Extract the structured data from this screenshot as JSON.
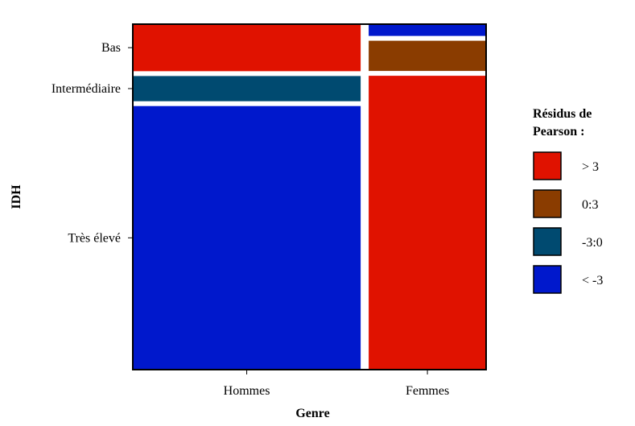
{
  "chart_data": {
    "type": "mosaic",
    "xlabel": "Genre",
    "ylabel": "IDH",
    "x_categories": [
      {
        "name": "Hommes",
        "share": 0.66
      },
      {
        "name": "Femmes",
        "share": 0.34
      }
    ],
    "y_categories": [
      "Bas",
      "Intermédiaire",
      "Très élevé"
    ],
    "cells": [
      {
        "x": "Hommes",
        "y": "Bas",
        "share": 0.14,
        "residual_class": "> 3"
      },
      {
        "x": "Hommes",
        "y": "Intermédiaire",
        "share": 0.075,
        "residual_class": "-3:0"
      },
      {
        "x": "Hommes",
        "y": "Très élevé",
        "share": 0.785,
        "residual_class": "< -3"
      },
      {
        "x": "Femmes",
        "y": "Bas",
        "share": 0.035,
        "residual_class": "< -3"
      },
      {
        "x": "Femmes",
        "y": "Intermédiaire",
        "share": 0.09,
        "residual_class": "0:3"
      },
      {
        "x": "Femmes",
        "y": "Très élevé",
        "share": 0.875,
        "residual_class": "> 3"
      }
    ],
    "legend": {
      "title": [
        "Résidus de",
        "Pearson :"
      ],
      "items": [
        {
          "label": "> 3",
          "color": "#e01200"
        },
        {
          "label": "0:3",
          "color": "#8a3c00"
        },
        {
          "label": "-3:0",
          "color": "#004a70"
        },
        {
          "label": "< -3",
          "color": "#0018cc"
        }
      ]
    }
  }
}
